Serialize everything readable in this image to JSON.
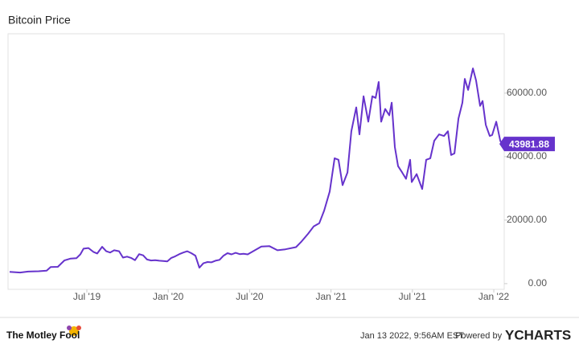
{
  "chart_data": {
    "type": "line",
    "title": "Bitcoin Price",
    "x": [
      2019.026,
      2019.09,
      2019.139,
      2019.204,
      2019.253,
      2019.278,
      2019.322,
      2019.362,
      2019.401,
      2019.436,
      2019.46,
      2019.48,
      2019.51,
      2019.54,
      2019.564,
      2019.594,
      2019.619,
      2019.643,
      2019.668,
      2019.698,
      2019.722,
      2019.747,
      2019.772,
      2019.796,
      2019.821,
      2019.846,
      2019.87,
      2019.895,
      2019.92,
      2019.945,
      2019.969,
      2019.994,
      2020.019,
      2020.043,
      2020.068,
      2020.093,
      2020.117,
      2020.142,
      2020.167,
      2020.191,
      2020.216,
      2020.241,
      2020.265,
      2020.29,
      2020.315,
      2020.34,
      2020.364,
      2020.389,
      2020.414,
      2020.439,
      2020.463,
      2020.488,
      2020.572,
      2020.622,
      2020.671,
      2020.72,
      2020.785,
      2020.819,
      2020.859,
      2020.893,
      2020.928,
      2020.958,
      2020.992,
      2021.022,
      2021.046,
      2021.071,
      2021.101,
      2021.125,
      2021.155,
      2021.175,
      2021.2,
      2021.229,
      2021.254,
      2021.274,
      2021.293,
      2021.308,
      2021.333,
      2021.358,
      2021.373,
      2021.392,
      2021.412,
      2021.437,
      2021.461,
      2021.486,
      2021.496,
      2021.526,
      2021.56,
      2021.585,
      2021.61,
      2021.634,
      2021.664,
      2021.694,
      2021.718,
      2021.738,
      2021.758,
      2021.783,
      2021.807,
      2021.822,
      2021.842,
      2021.872,
      2021.891,
      2021.916,
      2021.931,
      2021.951,
      2021.975,
      2021.99,
      2022.015,
      2022.04,
      2022.05
    ],
    "series": [
      {
        "color": "#6633cc",
        "values": [
          3700,
          3500,
          3800,
          3900,
          4100,
          5200,
          5300,
          7300,
          7900,
          8000,
          9200,
          11000,
          11200,
          10000,
          9500,
          11600,
          10200,
          9800,
          10500,
          10200,
          8200,
          8500,
          8100,
          7400,
          9300,
          8900,
          7600,
          7300,
          7400,
          7200,
          7100,
          7000,
          8100,
          8600,
          9300,
          9800,
          10200,
          9600,
          8800,
          5000,
          6400,
          6800,
          6700,
          7200,
          7500,
          8800,
          9600,
          9200,
          9700,
          9300,
          9400,
          9200,
          11700,
          11800,
          10500,
          10800,
          11500,
          13300,
          15700,
          18000,
          19000,
          23000,
          29000,
          39500,
          39000,
          31000,
          35000,
          48000,
          55500,
          47000,
          59000,
          51000,
          59000,
          58500,
          63500,
          51000,
          55000,
          53000,
          57000,
          43000,
          37000,
          35000,
          33000,
          39000,
          32000,
          34500,
          29800,
          39000,
          39500,
          45000,
          47000,
          46500,
          48000,
          40500,
          41000,
          52000,
          57000,
          64500,
          61000,
          67800,
          64000,
          56000,
          57500,
          50000,
          46500,
          46800,
          51000,
          45000,
          43981.88
        ]
      }
    ],
    "xlim": [
      2019.016,
      2022.064
    ],
    "ylim": [
      -1800,
      78700
    ],
    "xticks": [
      {
        "value": 2019.5,
        "label": "Jul '19"
      },
      {
        "value": 2020.0,
        "label": "Jan '20"
      },
      {
        "value": 2020.5,
        "label": "Jul '20"
      },
      {
        "value": 2021.0,
        "label": "Jan '21"
      },
      {
        "value": 2021.5,
        "label": "Jul '21"
      },
      {
        "value": 2022.0,
        "label": "Jan '22"
      }
    ],
    "yticks": [
      {
        "value": 0,
        "label": "0.00"
      },
      {
        "value": 20000,
        "label": "20000.00"
      },
      {
        "value": 40000,
        "label": "40000.00"
      },
      {
        "value": 60000,
        "label": "60000.00"
      }
    ],
    "grid": false
  },
  "footer": {
    "brand": "The Motley Fool",
    "timestamp": "Jan 13 2022, 9:56AM EST.",
    "powered_by": "Powered by",
    "logo": "YCHARTS"
  }
}
